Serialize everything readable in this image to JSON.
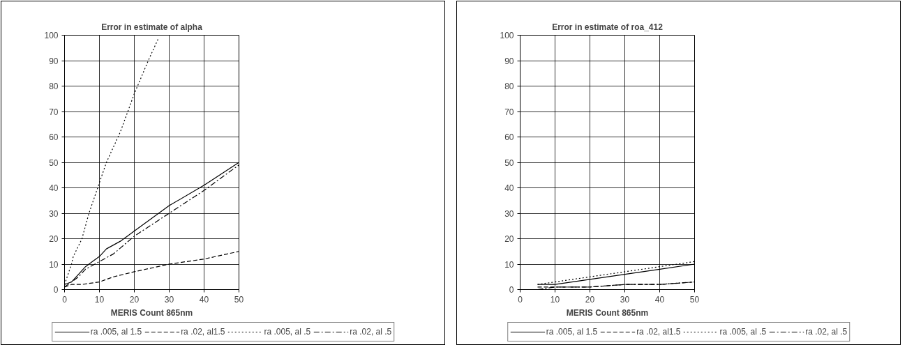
{
  "chart_data": [
    {
      "type": "line",
      "title": "Error in estimate of alpha",
      "xlabel": "MERIS Count 865nm",
      "xlim": [
        0,
        50
      ],
      "ylim": [
        0,
        100
      ],
      "xticks": [
        0,
        10,
        20,
        30,
        40,
        50
      ],
      "yticks": [
        0,
        10,
        20,
        30,
        40,
        50,
        60,
        70,
        80,
        90,
        100
      ],
      "grid": true,
      "legend": "bottom",
      "marker": "none",
      "series": [
        {
          "name": "ra .005, al 1.5",
          "color": "#000000",
          "line_style": "solid",
          "x": [
            0,
            2,
            4,
            6,
            8,
            10,
            12,
            16,
            20,
            30,
            40,
            50
          ],
          "values": [
            2,
            3,
            6,
            9,
            11,
            13,
            16,
            19,
            23,
            33,
            41,
            50
          ]
        },
        {
          "name": "ra .02, al1.5",
          "color": "#000000",
          "line_style": "dashed",
          "x": [
            0,
            2,
            5,
            10,
            14,
            20,
            30,
            40,
            50
          ],
          "values": [
            1,
            2,
            2,
            3,
            5,
            7,
            10,
            12,
            15
          ]
        },
        {
          "name": "ra .005, al .5",
          "color": "#000000",
          "line_style": "dotted",
          "x": [
            0,
            1,
            2,
            2.5,
            5,
            7,
            10,
            12,
            16,
            20,
            24,
            27
          ],
          "values": [
            2,
            6,
            10,
            13,
            20,
            30,
            42,
            50,
            62,
            77,
            90,
            99
          ]
        },
        {
          "name": "ra .02, al .5",
          "color": "#000000",
          "line_style": "dashdot",
          "x": [
            0,
            2,
            4,
            6,
            10,
            14,
            20,
            30,
            40,
            50
          ],
          "values": [
            1,
            3,
            5,
            8,
            11,
            14,
            21,
            30,
            39,
            49
          ]
        }
      ]
    },
    {
      "type": "line",
      "title": "Error in estimate of roa_412",
      "xlabel": "MERIS Count 865nm",
      "xlim": [
        0,
        50
      ],
      "ylim": [
        0,
        100
      ],
      "xticks": [
        0,
        10,
        20,
        30,
        40,
        50
      ],
      "yticks": [
        0,
        10,
        20,
        30,
        40,
        50,
        60,
        70,
        80,
        90,
        100
      ],
      "grid": true,
      "legend": "bottom",
      "marker": "none",
      "series": [
        {
          "name": "ra .005, al 1.5",
          "color": "#000000",
          "line_style": "solid",
          "x": [
            5,
            10,
            20,
            30,
            40,
            50
          ],
          "values": [
            2,
            2,
            4,
            6,
            8,
            10
          ]
        },
        {
          "name": "ra .02, al1.5",
          "color": "#000000",
          "line_style": "dashed",
          "x": [
            5,
            10,
            20,
            30,
            40,
            50
          ],
          "values": [
            1,
            1,
            1,
            2,
            2,
            3
          ]
        },
        {
          "name": "ra .005, al .5",
          "color": "#000000",
          "line_style": "dotted",
          "x": [
            5,
            10,
            15,
            20,
            30,
            40,
            50
          ],
          "values": [
            2,
            3,
            4,
            5,
            7,
            9,
            11
          ]
        },
        {
          "name": "ra .02, al .5",
          "color": "#000000",
          "line_style": "dashdot",
          "x": [
            5,
            10,
            20,
            30,
            40,
            50
          ],
          "values": [
            0,
            1,
            1,
            2,
            2,
            3
          ]
        }
      ]
    }
  ]
}
